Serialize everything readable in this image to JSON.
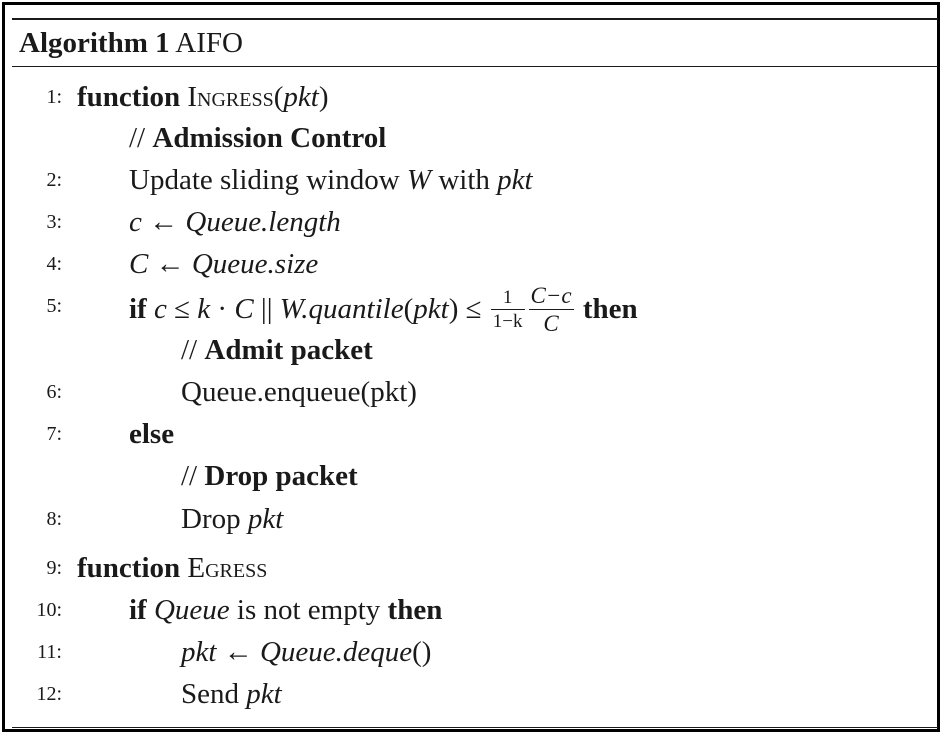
{
  "algorithm": {
    "label": "Algorithm 1",
    "name": "AIFO"
  },
  "lines": {
    "l1": {
      "num": "1:",
      "kw": "function",
      "name": "Ingress",
      "open": "(",
      "arg": "pkt",
      "close": ")"
    },
    "c1": {
      "slashes": "//",
      "text": "Admission Control"
    },
    "l2": {
      "num": "2:",
      "pre": "Update sliding window",
      "var": "W",
      "mid": "with",
      "arg": "pkt"
    },
    "l3": {
      "num": "3:",
      "lhs": "c",
      "arrow": "←",
      "rhs": "Queue.length"
    },
    "l4": {
      "num": "4:",
      "lhs": "C",
      "arrow": "←",
      "rhs": "Queue.size"
    },
    "l5": {
      "num": "5:",
      "kw_if": "if",
      "c": "c",
      "le1": "≤",
      "k": "k",
      "dot": "·",
      "C": "C",
      "or": "||",
      "wq": "W.quantile",
      "open": "(",
      "pkt": "pkt",
      "close": ")",
      "le2": "≤",
      "f1_num": "1",
      "f1_den": "1−k",
      "f2_num": "C−c",
      "f2_den": "C",
      "kw_then": "then"
    },
    "c2": {
      "slashes": "//",
      "text": "Admit packet"
    },
    "l6": {
      "num": "6:",
      "text": "Queue.enqueue(pkt)"
    },
    "l7": {
      "num": "7:",
      "kw": "else"
    },
    "c3": {
      "slashes": "//",
      "text": "Drop packet"
    },
    "l8": {
      "num": "8:",
      "pre": "Drop",
      "arg": "pkt"
    },
    "l9": {
      "num": "9:",
      "kw": "function",
      "name": "Egress"
    },
    "l10": {
      "num": "10:",
      "kw_if": "if",
      "var": "Queue",
      "mid": "is not empty",
      "kw_then": "then"
    },
    "l11": {
      "num": "11:",
      "lhs": "pkt",
      "arrow": "←",
      "rhs": "Queue.deque",
      "parens": "()"
    },
    "l12": {
      "num": "12:",
      "pre": "Send",
      "arg": "pkt"
    }
  }
}
